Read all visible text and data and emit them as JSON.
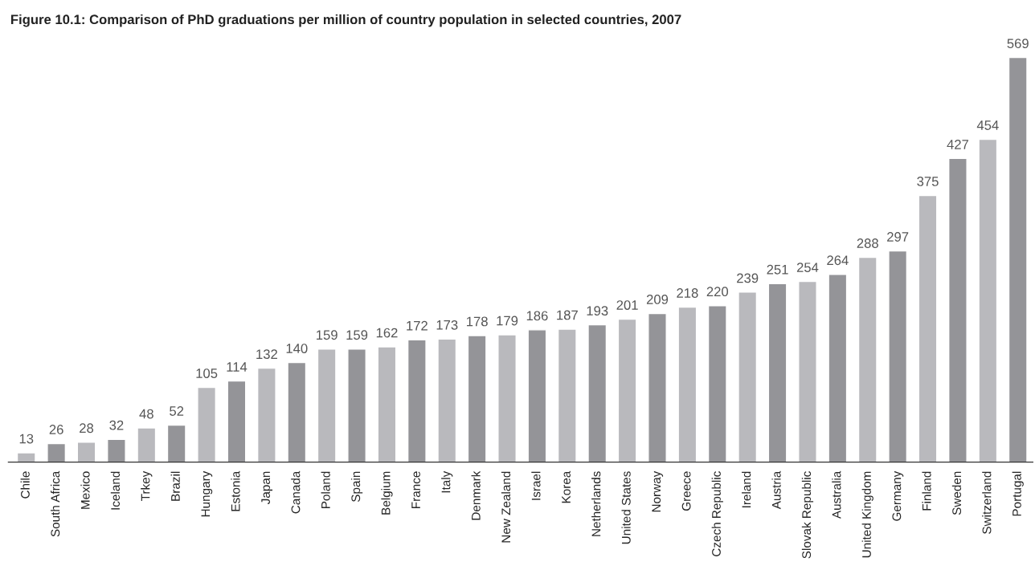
{
  "chart_data": {
    "type": "bar",
    "title": "Figure 10.1: Comparison of PhD graduations per million of country population in selected countries, 2007",
    "categories": [
      "Chile",
      "South Africa",
      "Mexico",
      "Iceland",
      "Trkey",
      "Brazil",
      "Hungary",
      "Estonia",
      "Japan",
      "Canada",
      "Poland",
      "Spain",
      "Belgium",
      "France",
      "Italy",
      "Denmark",
      "New Zealand",
      "Israel",
      "Korea",
      "Netherlands",
      "United States",
      "Norway",
      "Greece",
      "Czech Republic",
      "Ireland",
      "Austria",
      "Slovak Republic",
      "Australia",
      "United Kingdom",
      "Germany",
      "Finland",
      "Sweden",
      "Switzerland",
      "Portugal"
    ],
    "values": [
      13,
      26,
      28,
      32,
      48,
      52,
      105,
      114,
      132,
      140,
      159,
      159,
      162,
      172,
      173,
      178,
      179,
      186,
      187,
      193,
      201,
      209,
      218,
      220,
      239,
      251,
      254,
      264,
      288,
      297,
      375,
      427,
      454,
      569
    ],
    "colors": [
      "#b9b9bd",
      "#949498",
      "#b9b9bd",
      "#949498",
      "#b9b9bd",
      "#949498",
      "#b9b9bd",
      "#949498",
      "#b9b9bd",
      "#949498",
      "#b9b9bd",
      "#949498",
      "#b9b9bd",
      "#949498",
      "#b9b9bd",
      "#949498",
      "#b9b9bd",
      "#949498",
      "#b9b9bd",
      "#949498",
      "#b9b9bd",
      "#949498",
      "#b9b9bd",
      "#949498",
      "#b9b9bd",
      "#949498",
      "#b9b9bd",
      "#949498",
      "#b9b9bd",
      "#949498",
      "#b9b9bd",
      "#949498",
      "#b9b9bd",
      "#949498"
    ],
    "data_labels": true,
    "grid": false,
    "legend": false
  }
}
